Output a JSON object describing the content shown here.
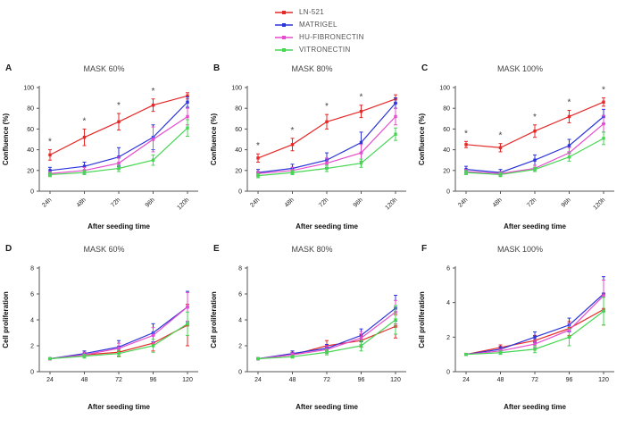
{
  "legend": [
    {
      "label": "LN-521",
      "color": "#e62828"
    },
    {
      "label": "MATRIGEL",
      "color": "#2b35d9"
    },
    {
      "label": "HU-FIBRONECTIN",
      "color": "#e64ccd"
    },
    {
      "label": "VITRONECTIN",
      "color": "#45d653"
    }
  ],
  "chart_data": [
    {
      "panel_label": "A",
      "title": "MASK 60%",
      "type": "line",
      "xlabel": "After seeding time",
      "ylabel": "Confluence (%)",
      "categories": [
        "24h",
        "48h",
        "72h",
        "96h",
        "120h"
      ],
      "xtick_rotate": true,
      "ylim": [
        0,
        100
      ],
      "yticks": [
        0,
        20,
        40,
        60,
        80,
        100
      ],
      "series": [
        {
          "name": "LN-521",
          "values": [
            35,
            52,
            67,
            83,
            92
          ],
          "err": [
            5,
            8,
            8,
            6,
            3
          ]
        },
        {
          "name": "MATRIGEL",
          "values": [
            20,
            24,
            33,
            52,
            86
          ],
          "err": [
            3,
            4,
            9,
            12,
            5
          ]
        },
        {
          "name": "HU-FIBRONECTIN",
          "values": [
            17,
            20,
            27,
            50,
            72
          ],
          "err": [
            2,
            3,
            6,
            12,
            8
          ]
        },
        {
          "name": "VITRONECTIN",
          "values": [
            16,
            18,
            22,
            30,
            61
          ],
          "err": [
            2,
            2,
            3,
            5,
            8
          ]
        }
      ],
      "significance_marker": "*",
      "significance_x": [
        0,
        1,
        2,
        3
      ]
    },
    {
      "panel_label": "B",
      "title": "MASK 80%",
      "type": "line",
      "xlabel": "After seeding time",
      "ylabel": "Confluence (%)",
      "categories": [
        "24h",
        "48h",
        "72h",
        "96h",
        "120h"
      ],
      "xtick_rotate": true,
      "ylim": [
        0,
        100
      ],
      "yticks": [
        0,
        20,
        40,
        60,
        80,
        100
      ],
      "series": [
        {
          "name": "LN-521",
          "values": [
            32,
            45,
            67,
            77,
            89
          ],
          "err": [
            4,
            6,
            7,
            6,
            4
          ]
        },
        {
          "name": "MATRIGEL",
          "values": [
            18,
            22,
            30,
            47,
            85
          ],
          "err": [
            3,
            4,
            7,
            10,
            5
          ]
        },
        {
          "name": "HU-FIBRONECTIN",
          "values": [
            17,
            20,
            27,
            37,
            72
          ],
          "err": [
            2,
            3,
            5,
            8,
            8
          ]
        },
        {
          "name": "VITRONECTIN",
          "values": [
            15,
            18,
            22,
            27,
            55
          ],
          "err": [
            2,
            2,
            3,
            4,
            6
          ]
        }
      ],
      "significance_marker": "*",
      "significance_x": [
        0,
        1,
        2,
        3
      ]
    },
    {
      "panel_label": "C",
      "title": "MASK 100%",
      "type": "line",
      "xlabel": "After seeding time",
      "ylabel": "Confluence (%)",
      "categories": [
        "24h",
        "48h",
        "72h",
        "96h",
        "120h"
      ],
      "xtick_rotate": true,
      "ylim": [
        0,
        100
      ],
      "yticks": [
        0,
        20,
        40,
        60,
        80,
        100
      ],
      "series": [
        {
          "name": "LN-521",
          "values": [
            45,
            42,
            58,
            72,
            86
          ],
          "err": [
            3,
            4,
            6,
            6,
            4
          ]
        },
        {
          "name": "MATRIGEL",
          "values": [
            21,
            18,
            30,
            44,
            72
          ],
          "err": [
            3,
            3,
            5,
            6,
            7
          ]
        },
        {
          "name": "HU-FIBRONECTIN",
          "values": [
            19,
            17,
            22,
            37,
            65
          ],
          "err": [
            2,
            2,
            3,
            5,
            8
          ]
        },
        {
          "name": "VITRONECTIN",
          "values": [
            18,
            16,
            21,
            33,
            51
          ],
          "err": [
            2,
            2,
            2,
            4,
            6
          ]
        }
      ],
      "significance_marker": "*",
      "significance_x": [
        0,
        1,
        2,
        3,
        4
      ]
    },
    {
      "panel_label": "D",
      "title": "MASK 60%",
      "type": "line",
      "xlabel": "After seeding time",
      "ylabel": "Cell proliferation",
      "categories": [
        "24",
        "48",
        "72",
        "96",
        "120"
      ],
      "xtick_rotate": false,
      "ylim": [
        0,
        8
      ],
      "yticks": [
        0,
        2,
        4,
        6,
        8
      ],
      "series": [
        {
          "name": "LN-521",
          "values": [
            1,
            1.3,
            1.5,
            2.2,
            3.6
          ],
          "err": [
            0.05,
            0.2,
            0.3,
            0.6,
            1.6
          ]
        },
        {
          "name": "MATRIGEL",
          "values": [
            1,
            1.4,
            1.9,
            3.0,
            5.0
          ],
          "err": [
            0.05,
            0.2,
            0.5,
            0.7,
            1.2
          ]
        },
        {
          "name": "HU-FIBRONECTIN",
          "values": [
            1,
            1.3,
            1.8,
            2.8,
            5.0
          ],
          "err": [
            0.05,
            0.2,
            0.4,
            0.6,
            1.1
          ]
        },
        {
          "name": "VITRONECTIN",
          "values": [
            1,
            1.2,
            1.4,
            2.0,
            3.7
          ],
          "err": [
            0.05,
            0.15,
            0.25,
            0.5,
            0.9
          ]
        }
      ],
      "significance_marker": "",
      "significance_x": []
    },
    {
      "panel_label": "E",
      "title": "MASK 80%",
      "type": "line",
      "xlabel": "After seeding time",
      "ylabel": "Cell proliferation",
      "categories": [
        "24",
        "48",
        "72",
        "96",
        "120"
      ],
      "xtick_rotate": false,
      "ylim": [
        0,
        8
      ],
      "yticks": [
        0,
        2,
        4,
        6,
        8
      ],
      "series": [
        {
          "name": "LN-521",
          "values": [
            1,
            1.3,
            2.0,
            2.4,
            3.5
          ],
          "err": [
            0.05,
            0.2,
            0.4,
            0.5,
            0.9
          ]
        },
        {
          "name": "MATRIGEL",
          "values": [
            1,
            1.4,
            1.8,
            2.8,
            4.9
          ],
          "err": [
            0.05,
            0.2,
            0.3,
            0.5,
            1.0
          ]
        },
        {
          "name": "HU-FIBRONECTIN",
          "values": [
            1,
            1.3,
            1.7,
            2.6,
            4.6
          ],
          "err": [
            0.05,
            0.15,
            0.3,
            0.5,
            0.9
          ]
        },
        {
          "name": "VITRONECTIN",
          "values": [
            1,
            1.15,
            1.5,
            2.0,
            4.0
          ],
          "err": [
            0.05,
            0.1,
            0.2,
            0.4,
            1.1
          ]
        }
      ],
      "significance_marker": "",
      "significance_x": []
    },
    {
      "panel_label": "F",
      "title": "MASK 100%",
      "type": "line",
      "xlabel": "After seeding time",
      "ylabel": "Cell proliferation",
      "categories": [
        "24",
        "48",
        "72",
        "96",
        "120"
      ],
      "xtick_rotate": false,
      "ylim": [
        0,
        6
      ],
      "yticks": [
        0,
        2,
        4,
        6
      ],
      "series": [
        {
          "name": "LN-521",
          "values": [
            1,
            1.4,
            1.8,
            2.5,
            3.6
          ],
          "err": [
            0.05,
            0.15,
            0.3,
            0.4,
            0.9
          ]
        },
        {
          "name": "MATRIGEL",
          "values": [
            1,
            1.3,
            2.0,
            2.7,
            4.5
          ],
          "err": [
            0.05,
            0.15,
            0.3,
            0.4,
            1.0
          ]
        },
        {
          "name": "HU-FIBRONECTIN",
          "values": [
            1,
            1.2,
            1.6,
            2.4,
            4.4
          ],
          "err": [
            0.05,
            0.1,
            0.2,
            0.4,
            0.9
          ]
        },
        {
          "name": "VITRONECTIN",
          "values": [
            1,
            1.1,
            1.3,
            2.0,
            3.5
          ],
          "err": [
            0.05,
            0.1,
            0.2,
            0.5,
            0.8
          ]
        }
      ],
      "significance_marker": "",
      "significance_x": []
    }
  ]
}
